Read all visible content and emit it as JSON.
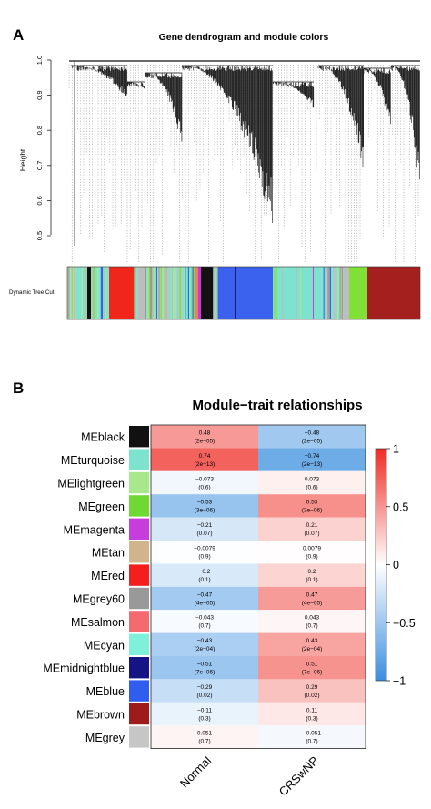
{
  "panel_a": {
    "letter": "A",
    "title": "Gene dendrogram and module colors",
    "ylabel": "Height",
    "yticks": [
      "1.0",
      "0.9",
      "0.8",
      "0.7",
      "0.6",
      "0.5"
    ],
    "track_label": "Dynamic Tree Cut",
    "colors": {
      "turquoise": "#7de3cf",
      "blue": "#3a62ee",
      "brown": "#a3201f",
      "green": "#7fe036",
      "red": "#f0261b",
      "black": "#111111",
      "grey": "#bdbdbd",
      "tan": "#d1b48a",
      "salmon": "#f07a6e",
      "magenta": "#cc3ad6",
      "midnightblue": "#1a1c6e",
      "grey60": "#9a9a9a",
      "lightgreen": "#a8e88c"
    }
  },
  "panel_b": {
    "letter": "B"
  },
  "chart_data": {
    "type": "heatmap",
    "title": "Module−trait relationships",
    "rows": [
      "MEblack",
      "MEturquoise",
      "MElightgreen",
      "MEgreen",
      "MEmagenta",
      "MEtan",
      "MEred",
      "MEgrey60",
      "MEsalmon",
      "MEcyan",
      "MEmidnightblue",
      "MEblue",
      "MEbrown",
      "MEgrey"
    ],
    "row_colors": [
      "#111111",
      "#7de3cf",
      "#a8e88c",
      "#6fd934",
      "#c63ddc",
      "#d2b48c",
      "#f41e1e",
      "#999999",
      "#f46a6f",
      "#7ff0da",
      "#141485",
      "#2f5df0",
      "#9e1b1b",
      "#c6c6c6"
    ],
    "columns": [
      "Normal",
      "CRSwNP"
    ],
    "values": [
      [
        0.48,
        -0.48
      ],
      [
        0.74,
        -0.74
      ],
      [
        -0.073,
        0.073
      ],
      [
        -0.53,
        0.53
      ],
      [
        -0.21,
        0.21
      ],
      [
        -0.0079,
        0.0079
      ],
      [
        -0.2,
        0.2
      ],
      [
        -0.47,
        0.47
      ],
      [
        -0.043,
        0.043
      ],
      [
        -0.43,
        0.43
      ],
      [
        -0.51,
        0.51
      ],
      [
        -0.29,
        0.29
      ],
      [
        -0.11,
        0.11
      ],
      [
        0.051,
        -0.051
      ]
    ],
    "labels": [
      [
        "0.48",
        "−0.48"
      ],
      [
        "0.74",
        "−0.74"
      ],
      [
        "−0.073",
        "0.073"
      ],
      [
        "−0.53",
        "0.53"
      ],
      [
        "−0.21",
        "0.21"
      ],
      [
        "−0.0079",
        "0.0079"
      ],
      [
        "−0.2",
        "0.2"
      ],
      [
        "−0.47",
        "0.47"
      ],
      [
        "−0.043",
        "0.043"
      ],
      [
        "−0.43",
        "0.43"
      ],
      [
        "−0.51",
        "0.51"
      ],
      [
        "−0.29",
        "0.29"
      ],
      [
        "−0.11",
        "0.11"
      ],
      [
        "0.051",
        "−0.051"
      ]
    ],
    "pvalues": [
      [
        "(2e−05)",
        "(2e−05)"
      ],
      [
        "(2e−13)",
        "(2e−13)"
      ],
      [
        "(0.6)",
        "(0.6)"
      ],
      [
        "(3e−06)",
        "(3e−06)"
      ],
      [
        "(0.07)",
        "(0.07)"
      ],
      [
        "(0.9)",
        "(0.9)"
      ],
      [
        "(0.1)",
        "(0.1)"
      ],
      [
        "(4e−05)",
        "(4e−05)"
      ],
      [
        "(0.7)",
        "(0.7)"
      ],
      [
        "(2e−04)",
        "(2e−04)"
      ],
      [
        "(7e−06)",
        "(7e−06)"
      ],
      [
        "(0.02)",
        "(0.02)"
      ],
      [
        "(0.3)",
        "(0.3)"
      ],
      [
        "(0.7)",
        "(0.7)"
      ]
    ],
    "scale": {
      "range": [
        -1,
        1
      ],
      "ticks": [
        "1",
        "0.5",
        "0",
        "−0.5",
        "−1"
      ],
      "low_color": "#3b8fe0",
      "mid_color": "#ffffff",
      "high_color": "#ef2b24"
    }
  }
}
